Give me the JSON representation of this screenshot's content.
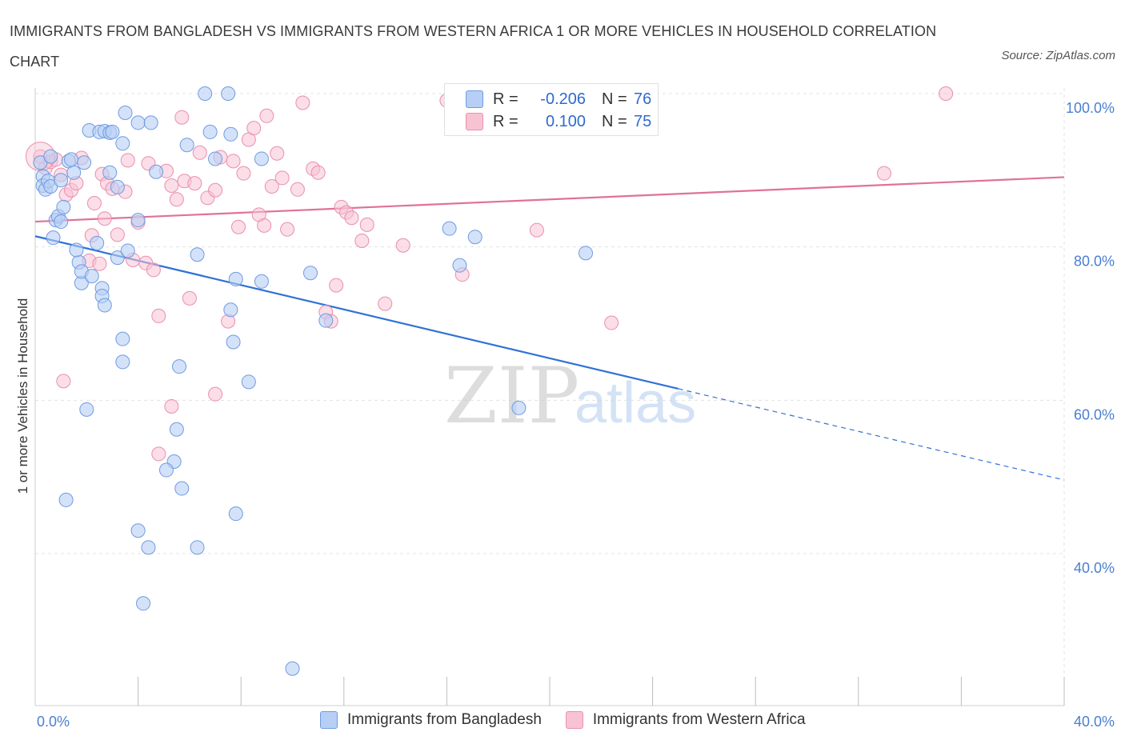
{
  "title": "IMMIGRANTS FROM BANGLADESH VS IMMIGRANTS FROM WESTERN AFRICA 1 OR MORE VEHICLES IN HOUSEHOLD CORRELATION CHART",
  "source": "Source: ZipAtlas.com",
  "watermark": {
    "zip": "ZIP",
    "atlas": "atlas"
  },
  "colors": {
    "blue_fill": "#b7cff5",
    "blue_stroke": "#6f9be0",
    "blue_line": "#2f72d6",
    "pink_fill": "#f7c3d3",
    "pink_stroke": "#e98fae",
    "pink_line": "#e0719a"
  },
  "legend": {
    "rows": [
      {
        "r_label": "R =",
        "r_value": "-0.206",
        "n_label": "N =",
        "n_value": "76"
      },
      {
        "r_label": "R =",
        "r_value": "0.100",
        "n_label": "N =",
        "n_value": "75"
      }
    ]
  },
  "bottom_legend": [
    "Immigrants from Bangladesh",
    "Immigrants from Western Africa"
  ],
  "chart_data": {
    "type": "scatter",
    "title": "IMMIGRANTS FROM BANGLADESH VS IMMIGRANTS FROM WESTERN AFRICA 1 OR MORE VEHICLES IN HOUSEHOLD CORRELATION CHART",
    "xlabel": "",
    "ylabel": "1 or more Vehicles in Household",
    "xlim": [
      0,
      40
    ],
    "ylim": [
      20,
      102
    ],
    "x_tick_labels": [
      "0.0%",
      "40.0%"
    ],
    "y_ticks": [
      40,
      60,
      80,
      100
    ],
    "y_tick_labels": [
      "40.0%",
      "60.0%",
      "80.0%",
      "100.0%"
    ],
    "grid": true,
    "legend_position": "top-center",
    "series": [
      {
        "name": "Immigrants from Bangladesh",
        "trend": {
          "x0": 0,
          "y0": 81.4,
          "x1": 25,
          "y1": 61.5,
          "dashed_to_x": 40,
          "dashed_to_y": 49.6
        },
        "points": [
          [
            0.2,
            91.0
          ],
          [
            0.3,
            89.2
          ],
          [
            0.3,
            88.0
          ],
          [
            0.4,
            87.5
          ],
          [
            0.5,
            88.6
          ],
          [
            0.6,
            91.8
          ],
          [
            0.6,
            87.9
          ],
          [
            0.8,
            83.5
          ],
          [
            0.7,
            81.2
          ],
          [
            0.9,
            84.0
          ],
          [
            1.0,
            83.3
          ],
          [
            1.1,
            85.2
          ],
          [
            1.0,
            88.7
          ],
          [
            1.3,
            91.2
          ],
          [
            1.5,
            89.7
          ],
          [
            1.9,
            91.0
          ],
          [
            1.4,
            91.4
          ],
          [
            2.1,
            95.2
          ],
          [
            2.5,
            95.0
          ],
          [
            2.7,
            95.1
          ],
          [
            2.9,
            94.9
          ],
          [
            3.4,
            93.5
          ],
          [
            3.5,
            97.5
          ],
          [
            4.0,
            96.2
          ],
          [
            4.5,
            96.2
          ],
          [
            4.7,
            89.8
          ],
          [
            2.9,
            89.7
          ],
          [
            3.2,
            87.8
          ],
          [
            2.4,
            80.5
          ],
          [
            1.7,
            78.0
          ],
          [
            1.6,
            79.6
          ],
          [
            1.8,
            75.3
          ],
          [
            1.8,
            76.8
          ],
          [
            2.2,
            76.2
          ],
          [
            2.6,
            74.6
          ],
          [
            2.6,
            73.6
          ],
          [
            2.7,
            72.4
          ],
          [
            3.2,
            78.6
          ],
          [
            3.6,
            79.5
          ],
          [
            4.0,
            83.5
          ],
          [
            3.4,
            68.0
          ],
          [
            3.4,
            65.0
          ],
          [
            2.0,
            58.8
          ],
          [
            1.2,
            47.0
          ],
          [
            4.0,
            43.0
          ],
          [
            4.4,
            40.8
          ],
          [
            4.2,
            33.5
          ],
          [
            5.6,
            64.4
          ],
          [
            5.5,
            56.2
          ],
          [
            5.4,
            52.0
          ],
          [
            5.1,
            50.9
          ],
          [
            5.7,
            48.5
          ],
          [
            6.3,
            40.8
          ],
          [
            7.8,
            45.2
          ],
          [
            6.3,
            79.0
          ],
          [
            5.9,
            93.3
          ],
          [
            6.6,
            100.0
          ],
          [
            7.5,
            100.0
          ],
          [
            7.6,
            94.7
          ],
          [
            6.8,
            95.0
          ],
          [
            7.0,
            91.5
          ],
          [
            8.8,
            91.5
          ],
          [
            7.8,
            75.8
          ],
          [
            8.8,
            75.5
          ],
          [
            7.6,
            71.8
          ],
          [
            7.7,
            67.6
          ],
          [
            8.3,
            62.4
          ],
          [
            10.7,
            76.6
          ],
          [
            11.3,
            70.4
          ],
          [
            16.1,
            82.4
          ],
          [
            17.1,
            81.3
          ],
          [
            16.5,
            77.6
          ],
          [
            18.8,
            59.0
          ],
          [
            21.4,
            79.2
          ],
          [
            10.0,
            25.0
          ],
          [
            3.0,
            95.0
          ]
        ]
      },
      {
        "name": "Immigrants from Western Africa",
        "trend": {
          "x0": 0,
          "y0": 83.3,
          "x1": 40,
          "y1": 89.1
        },
        "points": [
          [
            0.2,
            91.8
          ],
          [
            0.4,
            90.3
          ],
          [
            0.6,
            91.1
          ],
          [
            0.8,
            91.4
          ],
          [
            1.0,
            89.4
          ],
          [
            1.2,
            86.8
          ],
          [
            1.4,
            87.4
          ],
          [
            1.6,
            88.3
          ],
          [
            1.8,
            91.6
          ],
          [
            2.1,
            78.2
          ],
          [
            2.2,
            81.5
          ],
          [
            2.3,
            85.7
          ],
          [
            2.5,
            77.8
          ],
          [
            2.6,
            89.5
          ],
          [
            2.7,
            83.7
          ],
          [
            2.8,
            88.3
          ],
          [
            3.0,
            87.6
          ],
          [
            3.2,
            81.6
          ],
          [
            3.5,
            87.2
          ],
          [
            3.6,
            91.3
          ],
          [
            3.8,
            78.3
          ],
          [
            4.0,
            83.2
          ],
          [
            4.3,
            77.9
          ],
          [
            4.4,
            90.9
          ],
          [
            4.6,
            77.0
          ],
          [
            4.8,
            71.0
          ],
          [
            5.1,
            89.9
          ],
          [
            5.3,
            88.0
          ],
          [
            5.5,
            86.2
          ],
          [
            5.7,
            96.9
          ],
          [
            5.8,
            88.6
          ],
          [
            6.0,
            73.3
          ],
          [
            6.2,
            88.3
          ],
          [
            6.4,
            92.3
          ],
          [
            6.7,
            86.4
          ],
          [
            7.0,
            87.4
          ],
          [
            7.2,
            91.7
          ],
          [
            7.5,
            70.3
          ],
          [
            7.7,
            91.2
          ],
          [
            7.9,
            82.6
          ],
          [
            8.1,
            89.6
          ],
          [
            8.3,
            94.0
          ],
          [
            8.5,
            95.5
          ],
          [
            8.7,
            84.2
          ],
          [
            8.9,
            82.8
          ],
          [
            9.2,
            87.9
          ],
          [
            9.4,
            92.2
          ],
          [
            9.6,
            89.0
          ],
          [
            9.8,
            82.3
          ],
          [
            10.2,
            87.5
          ],
          [
            10.4,
            98.8
          ],
          [
            10.8,
            90.2
          ],
          [
            11.0,
            89.7
          ],
          [
            11.3,
            71.5
          ],
          [
            11.5,
            70.3
          ],
          [
            11.7,
            75.0
          ],
          [
            11.9,
            85.2
          ],
          [
            12.1,
            84.5
          ],
          [
            12.3,
            83.8
          ],
          [
            12.7,
            80.8
          ],
          [
            12.9,
            82.9
          ],
          [
            13.6,
            72.6
          ],
          [
            14.3,
            80.2
          ],
          [
            16.0,
            99.1
          ],
          [
            18.7,
            100.0
          ],
          [
            19.5,
            82.2
          ],
          [
            22.4,
            70.1
          ],
          [
            33.0,
            89.6
          ],
          [
            35.4,
            100.0
          ],
          [
            16.6,
            76.4
          ],
          [
            1.1,
            62.5
          ],
          [
            5.3,
            59.2
          ],
          [
            4.8,
            53.0
          ],
          [
            7.0,
            60.8
          ],
          [
            9.0,
            97.1
          ]
        ]
      }
    ]
  }
}
